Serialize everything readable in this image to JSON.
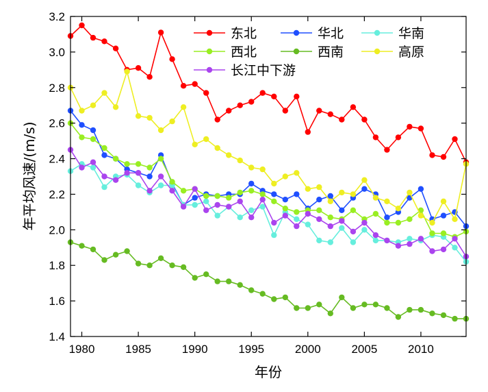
{
  "chart_data": {
    "type": "line",
    "xlabel": "年份",
    "ylabel": "年平均风速/(m/s)",
    "xlim": [
      1979,
      2014
    ],
    "ylim": [
      1.4,
      3.2
    ],
    "x_ticks": [
      "1980",
      "1985",
      "1990",
      "1995",
      "2000",
      "2005",
      "2010"
    ],
    "y_ticks": [
      "1.4",
      "1.6",
      "1.8",
      "2.0",
      "2.2",
      "2.4",
      "2.6",
      "2.8",
      "3.0",
      "3.2"
    ],
    "grid": false,
    "legend_position": "top-right",
    "x": [
      1979,
      1980,
      1981,
      1982,
      1983,
      1984,
      1985,
      1986,
      1987,
      1988,
      1989,
      1990,
      1991,
      1992,
      1993,
      1994,
      1995,
      1996,
      1997,
      1998,
      1999,
      2000,
      2001,
      2002,
      2003,
      2004,
      2005,
      2006,
      2007,
      2008,
      2009,
      2010,
      2011,
      2012,
      2013,
      2014
    ],
    "series": [
      {
        "name": "东北",
        "color": "#ff0000",
        "values": [
          3.09,
          3.15,
          3.08,
          3.06,
          3.02,
          2.9,
          2.91,
          2.86,
          3.11,
          2.96,
          2.81,
          2.82,
          2.77,
          2.62,
          2.67,
          2.7,
          2.72,
          2.77,
          2.75,
          2.67,
          2.75,
          2.55,
          2.67,
          2.65,
          2.62,
          2.69,
          2.62,
          2.52,
          2.45,
          2.52,
          2.58,
          2.57,
          2.42,
          2.41,
          2.51,
          2.38
        ]
      },
      {
        "name": "华北",
        "color": "#1f4fff",
        "values": [
          2.67,
          2.59,
          2.56,
          2.42,
          2.4,
          2.34,
          2.32,
          2.3,
          2.42,
          2.26,
          2.14,
          2.18,
          2.2,
          2.19,
          2.2,
          2.2,
          2.26,
          2.22,
          2.2,
          2.17,
          2.2,
          2.12,
          2.17,
          2.19,
          2.11,
          2.18,
          2.23,
          2.2,
          2.07,
          2.1,
          2.18,
          2.23,
          2.06,
          2.08,
          2.1,
          2.02
        ]
      },
      {
        "name": "华南",
        "color": "#66eedd",
        "values": [
          2.33,
          2.37,
          2.35,
          2.24,
          2.3,
          2.31,
          2.25,
          2.21,
          2.25,
          2.25,
          2.14,
          2.14,
          2.16,
          2.08,
          2.13,
          2.07,
          2.11,
          2.13,
          1.97,
          2.1,
          2.06,
          2.03,
          1.94,
          1.93,
          2.01,
          1.93,
          2.0,
          1.94,
          1.94,
          1.93,
          1.95,
          1.94,
          1.97,
          1.96,
          1.9,
          1.82
        ]
      },
      {
        "name": "西北",
        "color": "#99ee22",
        "values": [
          2.6,
          2.52,
          2.51,
          2.46,
          2.4,
          2.37,
          2.37,
          2.35,
          2.4,
          2.27,
          2.22,
          2.23,
          2.19,
          2.19,
          2.18,
          2.21,
          2.22,
          2.2,
          2.16,
          2.12,
          2.1,
          2.11,
          2.11,
          2.07,
          2.06,
          2.11,
          2.06,
          2.09,
          2.04,
          2.04,
          2.06,
          2.11,
          1.98,
          1.98,
          1.96,
          1.99
        ]
      },
      {
        "name": "西南",
        "color": "#66bb22",
        "values": [
          1.93,
          1.91,
          1.89,
          1.83,
          1.86,
          1.88,
          1.81,
          1.8,
          1.84,
          1.8,
          1.79,
          1.73,
          1.75,
          1.71,
          1.71,
          1.69,
          1.66,
          1.64,
          1.61,
          1.62,
          1.56,
          1.56,
          1.58,
          1.53,
          1.62,
          1.56,
          1.58,
          1.58,
          1.56,
          1.51,
          1.55,
          1.55,
          1.53,
          1.52,
          1.5,
          1.5
        ]
      },
      {
        "name": "高原",
        "color": "#eeee22",
        "values": [
          2.8,
          2.67,
          2.7,
          2.77,
          2.69,
          2.89,
          2.64,
          2.63,
          2.56,
          2.61,
          2.69,
          2.48,
          2.51,
          2.46,
          2.42,
          2.39,
          2.35,
          2.34,
          2.26,
          2.3,
          2.32,
          2.23,
          2.24,
          2.16,
          2.21,
          2.2,
          2.28,
          2.18,
          2.16,
          2.12,
          2.21,
          2.08,
          2.04,
          2.16,
          2.06,
          2.37
        ]
      },
      {
        "name": "长江中下游",
        "color": "#aa44ee",
        "values": [
          2.45,
          2.35,
          2.38,
          2.3,
          2.28,
          2.32,
          2.32,
          2.22,
          2.3,
          2.22,
          2.13,
          2.23,
          2.11,
          2.14,
          2.13,
          2.16,
          2.07,
          2.17,
          2.04,
          2.08,
          2.02,
          2.09,
          2.06,
          2.02,
          2.05,
          1.99,
          2.04,
          1.97,
          1.94,
          1.91,
          1.92,
          1.95,
          1.88,
          1.89,
          1.95,
          1.85
        ]
      }
    ]
  }
}
